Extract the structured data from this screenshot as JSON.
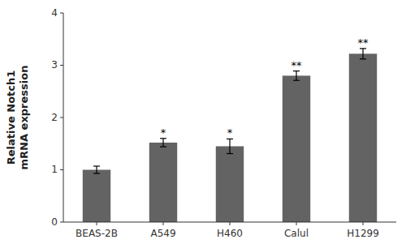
{
  "chart_data": {
    "type": "bar",
    "categories": [
      "BEAS-2B",
      "A549",
      "H460",
      "Calul",
      "H1299"
    ],
    "values": [
      1.0,
      1.52,
      1.45,
      2.8,
      3.22
    ],
    "errors": [
      0.07,
      0.08,
      0.14,
      0.09,
      0.1
    ],
    "significance": [
      null,
      "*",
      "*",
      "**",
      "**"
    ],
    "color": "#636363",
    "ylabel": "Relative Notch1\nmRNA expression",
    "ylim": [
      0,
      4
    ],
    "yticks": [
      0,
      1,
      2,
      3,
      4
    ],
    "grid": false
  }
}
